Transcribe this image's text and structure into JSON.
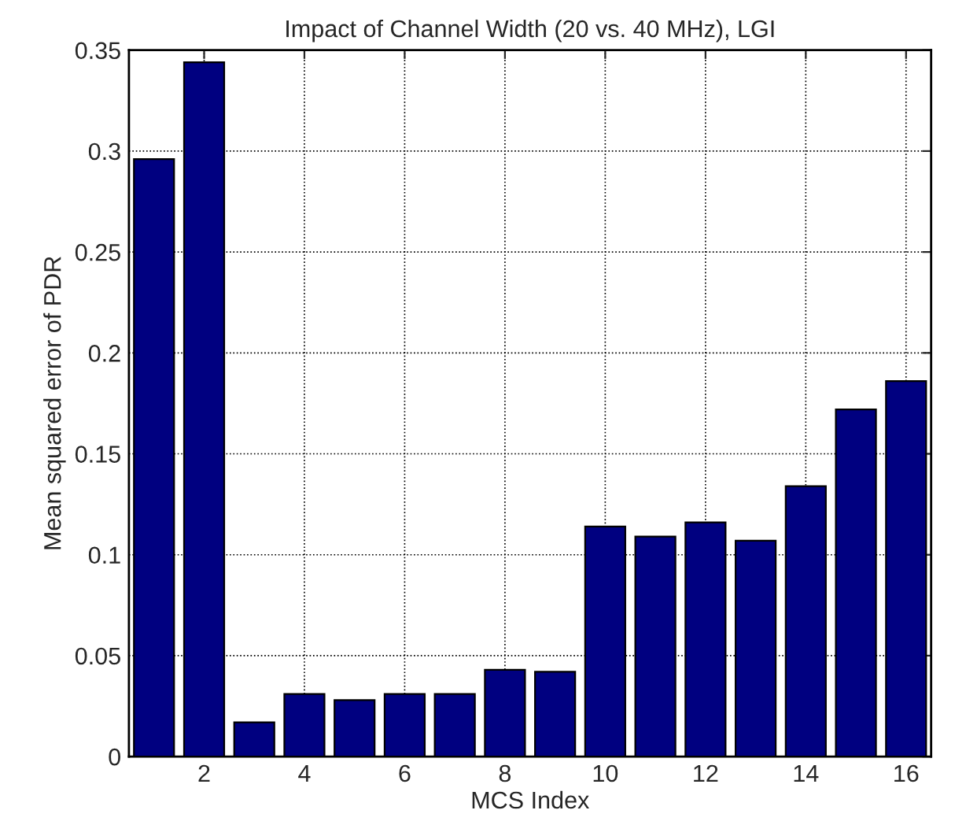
{
  "chart_data": {
    "type": "bar",
    "title": "Impact of Channel Width (20 vs. 40 MHz), LGI",
    "xlabel": "MCS Index",
    "ylabel": "Mean squared error of PDR",
    "x": [
      1,
      2,
      3,
      4,
      5,
      6,
      7,
      8,
      9,
      10,
      11,
      12,
      13,
      14,
      15,
      16
    ],
    "values": [
      0.296,
      0.344,
      0.017,
      0.031,
      0.028,
      0.031,
      0.031,
      0.043,
      0.042,
      0.114,
      0.109,
      0.116,
      0.107,
      0.134,
      0.172,
      0.186
    ],
    "color": "#000080",
    "xlim": [
      0.5,
      16.5
    ],
    "xticks": [
      2,
      4,
      6,
      8,
      10,
      12,
      14,
      16
    ],
    "ylim": [
      0,
      0.35
    ],
    "yticks": [
      0,
      0.05,
      0.1,
      0.15,
      0.2,
      0.25,
      0.3,
      0.35
    ],
    "grid": true,
    "line_style": "dotted"
  }
}
